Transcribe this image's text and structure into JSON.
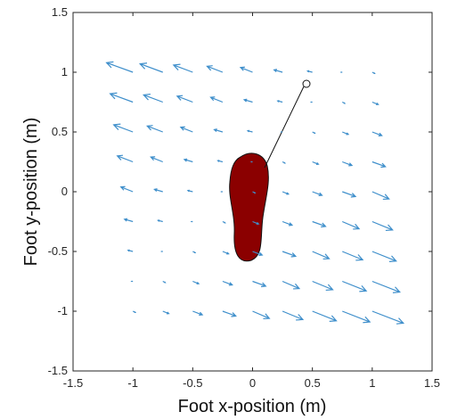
{
  "chart_data": {
    "type": "quiver",
    "xlabel": "Foot x-position (m)",
    "ylabel": "Foot y-position (m)",
    "color": "#3f8fcb",
    "xlim": [
      -1.5,
      1.5
    ],
    "ylim": [
      -1.5,
      1.5
    ],
    "xticks": [
      -1.5,
      -1,
      -0.5,
      0,
      0.5,
      1,
      1.5
    ],
    "yticks": [
      -1.5,
      -1,
      -0.5,
      0,
      0.5,
      1,
      1.5
    ],
    "x": [
      -1,
      -0.75,
      -0.5,
      -0.25,
      0,
      0.25,
      0.5,
      0.75,
      1
    ],
    "y": [
      1,
      0.75,
      0.5,
      0.25,
      0,
      -0.25,
      -0.5,
      -0.75,
      -1
    ],
    "u": [
      [
        -0.22,
        -0.19,
        -0.16,
        -0.13,
        -0.1,
        -0.07,
        -0.04,
        -0.01,
        0.02
      ],
      [
        -0.19,
        -0.16,
        -0.13,
        -0.1,
        -0.07,
        -0.04,
        -0.01,
        0.02,
        0.05
      ],
      [
        -0.16,
        -0.13,
        -0.1,
        -0.07,
        -0.04,
        -0.01,
        0.02,
        0.05,
        0.08
      ],
      [
        -0.13,
        -0.1,
        -0.07,
        -0.04,
        -0.01,
        0.02,
        0.05,
        0.08,
        0.11
      ],
      [
        -0.1,
        -0.07,
        -0.04,
        -0.01,
        0.02,
        0.05,
        0.08,
        0.11,
        0.14
      ],
      [
        -0.07,
        -0.04,
        -0.01,
        0.02,
        0.05,
        0.08,
        0.11,
        0.14,
        0.17
      ],
      [
        -0.04,
        -0.01,
        0.02,
        0.05,
        0.08,
        0.11,
        0.14,
        0.17,
        0.2
      ],
      [
        -0.01,
        0.02,
        0.05,
        0.08,
        0.11,
        0.14,
        0.17,
        0.2,
        0.23
      ],
      [
        0.02,
        0.05,
        0.08,
        0.11,
        0.14,
        0.17,
        0.2,
        0.23,
        0.26
      ]
    ],
    "v": [
      [
        0.08,
        0.07,
        0.06,
        0.05,
        0.04,
        0.02,
        0.01,
        0,
        -0.01
      ],
      [
        0.07,
        0.06,
        0.05,
        0.04,
        0.02,
        0.01,
        0,
        -0.01,
        -0.02
      ],
      [
        0.06,
        0.05,
        0.04,
        0.02,
        0.01,
        0,
        -0.01,
        -0.02,
        -0.03
      ],
      [
        0.05,
        0.04,
        0.02,
        0.01,
        0,
        -0.01,
        -0.02,
        -0.03,
        -0.04
      ],
      [
        0.04,
        0.02,
        0.01,
        0,
        -0.01,
        -0.02,
        -0.03,
        -0.04,
        -0.06
      ],
      [
        0.02,
        0.01,
        0,
        -0.01,
        -0.02,
        -0.03,
        -0.04,
        -0.06,
        -0.07
      ],
      [
        0.01,
        0,
        -0.01,
        -0.02,
        -0.03,
        -0.04,
        -0.06,
        -0.07,
        -0.08
      ],
      [
        0,
        -0.01,
        -0.02,
        -0.03,
        -0.04,
        -0.06,
        -0.07,
        -0.08,
        -0.09
      ],
      [
        -0.01,
        -0.02,
        -0.03,
        -0.04,
        -0.06,
        -0.07,
        -0.08,
        -0.09,
        -0.1
      ]
    ]
  }
}
